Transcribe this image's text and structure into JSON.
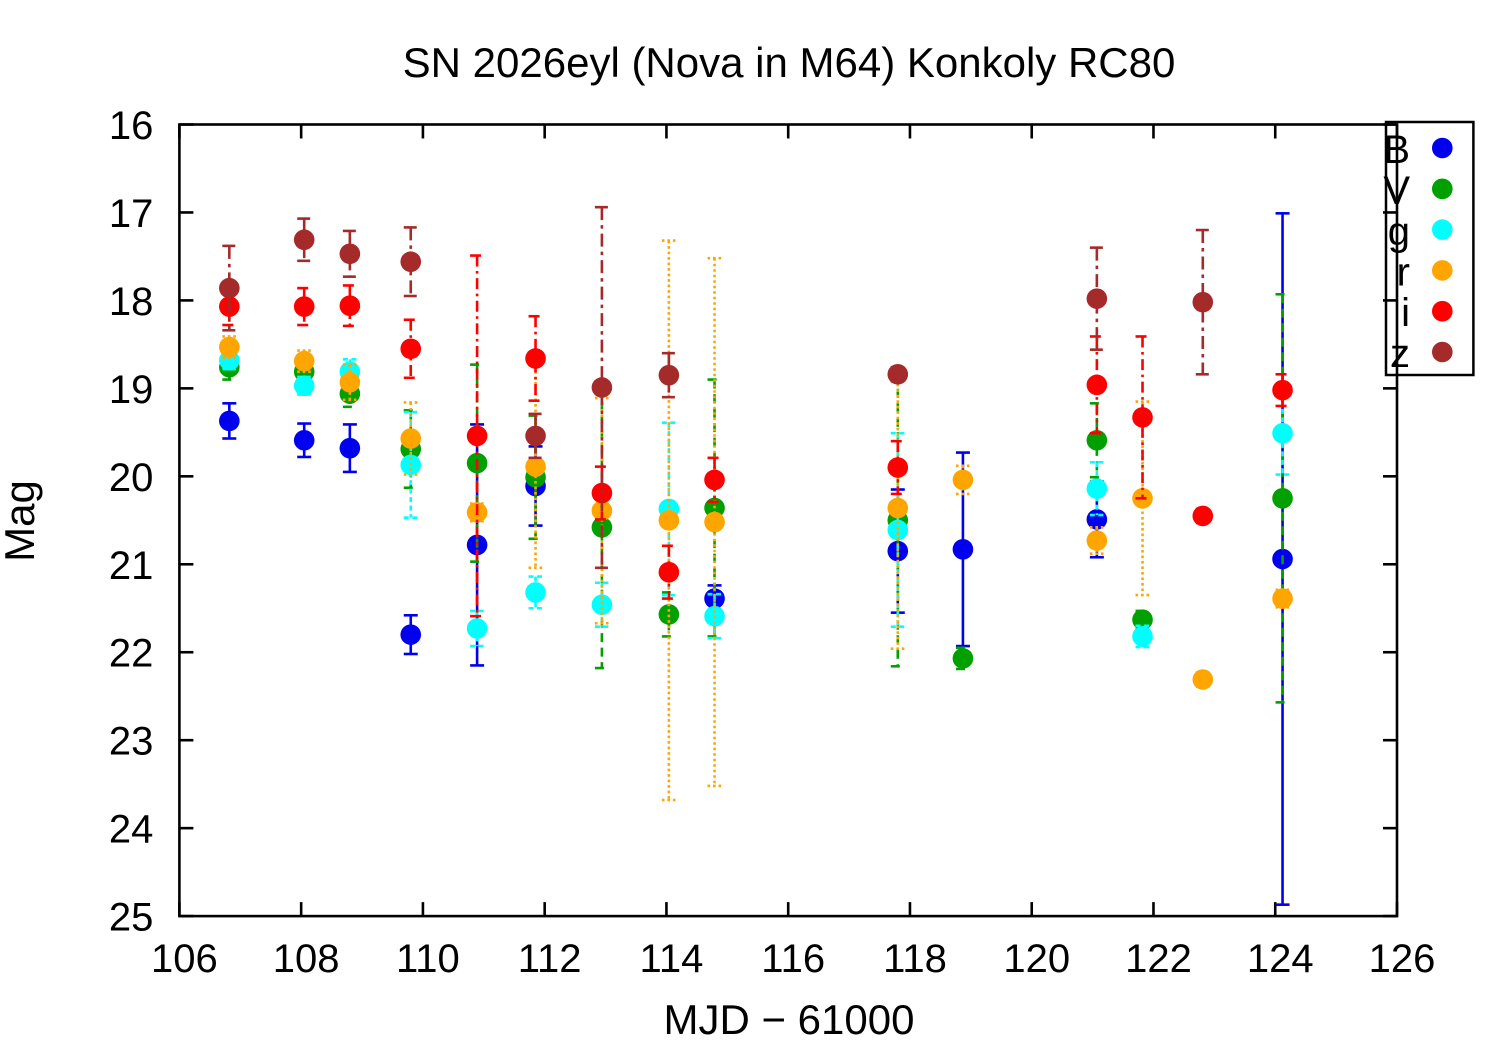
{
  "chart_data": {
    "type": "scatter",
    "title": "SN 2026eyl (Nova in M64) Konkoly RC80",
    "xlabel": "MJD − 61000",
    "ylabel": "Mag",
    "xlim": [
      106,
      126
    ],
    "ylim": [
      25,
      16
    ],
    "y_axis_inverted": true,
    "grid": false,
    "x_ticks": [
      106,
      108,
      110,
      112,
      114,
      116,
      118,
      120,
      122,
      124,
      126
    ],
    "y_ticks": [
      16,
      17,
      18,
      19,
      20,
      21,
      22,
      23,
      24,
      25
    ],
    "legend_position": "top-right",
    "marker": "filled-circle",
    "axis_color": "#000000",
    "background_color": "#ffffff",
    "series": [
      {
        "name": "B",
        "color": "#0000ee",
        "dash": "solid",
        "points": [
          {
            "x": 106.82,
            "mag": 19.37,
            "err": 0.2
          },
          {
            "x": 108.05,
            "mag": 19.59,
            "err": 0.19
          },
          {
            "x": 108.8,
            "mag": 19.68,
            "err": 0.27
          },
          {
            "x": 109.8,
            "mag": 21.8,
            "err": 0.22
          },
          {
            "x": 110.89,
            "mag": 20.78,
            "err": 1.37
          },
          {
            "x": 111.85,
            "mag": 20.11,
            "err": 0.45
          },
          {
            "x": 114.79,
            "mag": 21.39,
            "err": 0.15
          },
          {
            "x": 117.8,
            "mag": 20.85,
            "err": 0.7
          },
          {
            "x": 118.87,
            "mag": 20.83,
            "err": 1.1
          },
          {
            "x": 121.07,
            "mag": 20.49,
            "err": 0.43
          },
          {
            "x": 124.12,
            "mag": 20.94,
            "err": 3.93
          }
        ]
      },
      {
        "name": "V",
        "color": "#00a000",
        "dash": "dashed",
        "points": [
          {
            "x": 106.82,
            "mag": 18.76,
            "err": 0.14
          },
          {
            "x": 108.05,
            "mag": 18.81,
            "err": 0.12
          },
          {
            "x": 108.8,
            "mag": 19.06,
            "err": 0.15
          },
          {
            "x": 109.8,
            "mag": 19.69,
            "err": 0.44
          },
          {
            "x": 110.89,
            "mag": 19.85,
            "err": 1.12
          },
          {
            "x": 111.85,
            "mag": 20.01,
            "err": 0.7
          },
          {
            "x": 112.94,
            "mag": 20.58,
            "err": 1.6
          },
          {
            "x": 114.04,
            "mag": 21.57,
            "err": 0.25
          },
          {
            "x": 114.79,
            "mag": 20.36,
            "err": 1.46
          },
          {
            "x": 117.8,
            "mag": 20.5,
            "err": 1.66
          },
          {
            "x": 118.87,
            "mag": 22.07,
            "err": 0.12
          },
          {
            "x": 121.07,
            "mag": 19.59,
            "err": 0.42
          },
          {
            "x": 121.82,
            "mag": 21.63,
            "err": 0.1
          },
          {
            "x": 124.12,
            "mag": 20.25,
            "err": 2.32
          }
        ]
      },
      {
        "name": "g",
        "color": "#00ffff",
        "dash": "short-dash",
        "points": [
          {
            "x": 106.82,
            "mag": 18.68,
            "err": 0.1
          },
          {
            "x": 108.05,
            "mag": 18.97,
            "err": 0.1
          },
          {
            "x": 108.8,
            "mag": 18.81,
            "err": 0.14
          },
          {
            "x": 109.8,
            "mag": 19.87,
            "err": 0.6
          },
          {
            "x": 110.89,
            "mag": 21.73,
            "err": 0.2
          },
          {
            "x": 111.85,
            "mag": 21.32,
            "err": 0.18
          },
          {
            "x": 112.94,
            "mag": 21.46,
            "err": 0.25
          },
          {
            "x": 114.04,
            "mag": 20.37,
            "err": 0.98
          },
          {
            "x": 114.79,
            "mag": 21.59,
            "err": 0.25
          },
          {
            "x": 117.8,
            "mag": 20.61,
            "err": 1.1
          },
          {
            "x": 121.07,
            "mag": 20.14,
            "err": 0.3
          },
          {
            "x": 121.82,
            "mag": 21.82,
            "err": 0.12
          },
          {
            "x": 124.12,
            "mag": 19.51,
            "err": 0.47
          }
        ]
      },
      {
        "name": "r",
        "color": "#ffa500",
        "dash": "dotted",
        "points": [
          {
            "x": 106.82,
            "mag": 18.53,
            "err": 0.12
          },
          {
            "x": 108.05,
            "mag": 18.69,
            "err": 0.12
          },
          {
            "x": 108.8,
            "mag": 18.93,
            "err": 0.2
          },
          {
            "x": 109.8,
            "mag": 19.57,
            "err": 0.41
          },
          {
            "x": 110.89,
            "mag": 20.41,
            "err": 0.1
          },
          {
            "x": 111.85,
            "mag": 19.89,
            "err": 1.15
          },
          {
            "x": 112.94,
            "mag": 20.39,
            "err": 1.28
          },
          {
            "x": 114.04,
            "mag": 20.5,
            "err": 3.18
          },
          {
            "x": 114.79,
            "mag": 20.52,
            "err": 3.0
          },
          {
            "x": 117.8,
            "mag": 20.36,
            "err": 1.6
          },
          {
            "x": 118.87,
            "mag": 20.04,
            "err": 0.16
          },
          {
            "x": 121.07,
            "mag": 20.73,
            "err": 0.15
          },
          {
            "x": 121.82,
            "mag": 20.25,
            "err": 1.1
          },
          {
            "x": 122.81,
            "mag": 22.31,
            "err": 0.08
          },
          {
            "x": 124.12,
            "mag": 21.39,
            "err": 0.1
          }
        ]
      },
      {
        "name": "i",
        "color": "#ff0000",
        "dash": "dash-dot",
        "points": [
          {
            "x": 106.82,
            "mag": 18.07,
            "err": 0.21
          },
          {
            "x": 108.05,
            "mag": 18.07,
            "err": 0.21
          },
          {
            "x": 108.8,
            "mag": 18.06,
            "err": 0.23
          },
          {
            "x": 109.8,
            "mag": 18.55,
            "err": 0.33
          },
          {
            "x": 110.89,
            "mag": 19.54,
            "err": 2.05
          },
          {
            "x": 111.85,
            "mag": 18.66,
            "err": 0.48
          },
          {
            "x": 112.94,
            "mag": 20.19,
            "err": 0.3
          },
          {
            "x": 114.04,
            "mag": 21.09,
            "err": 0.3
          },
          {
            "x": 114.79,
            "mag": 20.04,
            "err": 0.25
          },
          {
            "x": 117.8,
            "mag": 19.9,
            "err": 0.3
          },
          {
            "x": 121.07,
            "mag": 18.96,
            "err": 0.55
          },
          {
            "x": 121.82,
            "mag": 19.33,
            "err": 0.92
          },
          {
            "x": 122.81,
            "mag": 20.45,
            "err": 0.08
          },
          {
            "x": 124.12,
            "mag": 19.02,
            "err": 0.18
          }
        ]
      },
      {
        "name": "z",
        "color": "#a52a2a",
        "dash": "long-dash-dot",
        "points": [
          {
            "x": 106.82,
            "mag": 17.86,
            "err": 0.48
          },
          {
            "x": 108.05,
            "mag": 17.31,
            "err": 0.24
          },
          {
            "x": 108.8,
            "mag": 17.47,
            "err": 0.26
          },
          {
            "x": 109.8,
            "mag": 17.56,
            "err": 0.39
          },
          {
            "x": 111.85,
            "mag": 19.54,
            "err": 0.25
          },
          {
            "x": 112.94,
            "mag": 18.99,
            "err": 2.05
          },
          {
            "x": 114.04,
            "mag": 18.85,
            "err": 0.25
          },
          {
            "x": 117.8,
            "mag": 18.84,
            "err": 0.08
          },
          {
            "x": 121.07,
            "mag": 17.98,
            "err": 0.58
          },
          {
            "x": 122.81,
            "mag": 18.02,
            "err": 0.82
          }
        ]
      }
    ]
  }
}
